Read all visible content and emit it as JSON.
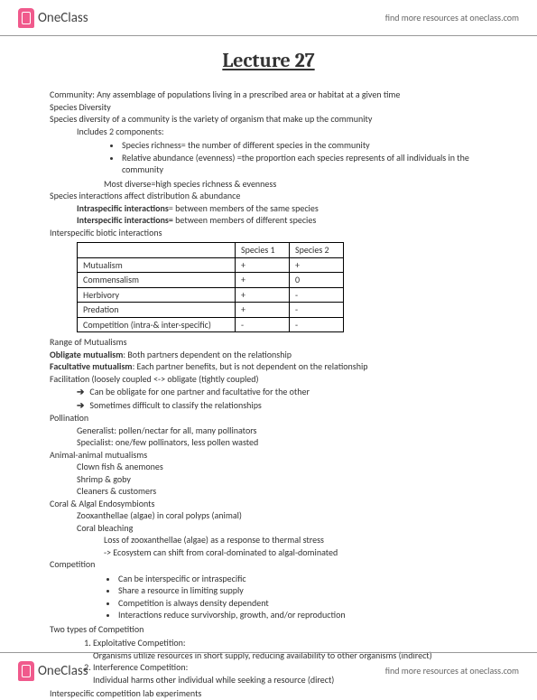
{
  "header": {
    "brand": "OneClass",
    "tagline": "find more resources at oneclass.com"
  },
  "title": "Lecture 27",
  "body": {
    "l1": "Community: Any assemblage of populations living in a prescribed area or habitat at a given time",
    "l2": "Species Diversity",
    "l3": "Species diversity of a community is the variety of organism that make up the community",
    "l4": "Includes 2 components:",
    "b1": "Species richness= the number of different species in the community",
    "b2": "Relative abundance (evenness) =the proportion each species represents of all individuals in the community",
    "l5": "Most diverse=high species richness & evenness",
    "l6": "Species interactions affect distribution & abundance",
    "l7a": "Intraspecific interactions",
    "l7b": "= between members of the same species",
    "l8a": "Interspecific interactions=",
    "l8b": " between members of different species",
    "l9": "Interspecific biotic interactions",
    "table": {
      "head": [
        "",
        "Species 1",
        "Species 2"
      ],
      "rows": [
        [
          "Mutualism",
          "+",
          "+"
        ],
        [
          "Commensalism",
          "+",
          "0"
        ],
        [
          "Herbivory",
          "+",
          "-"
        ],
        [
          "Predation",
          "+",
          "-"
        ],
        [
          "Competition (intra-& inter-specific)",
          "-",
          "-"
        ]
      ]
    },
    "l10": "Range of Mutualisms",
    "l11a": "Obligate mutualism",
    "l11b": ": Both partners dependent on the relationship",
    "l12a": "Facultative mutualism",
    "l12b": ": Each partner benefits, but is not dependent on the relationship",
    "l13": "Facilitation (loosely coupled <-> obligate (tightly coupled)",
    "ar1": "Can be obligate for one partner and facultative for the other",
    "ar2": "Sometimes difficult to classify the relationships",
    "l14": "Pollination",
    "l15": "Generalist: pollen/nectar for all, many pollinators",
    "l16": "Specialist: one/few pollinators, less pollen wasted",
    "l17": "Animal-animal mutualisms",
    "l18": "Clown fish & anemones",
    "l19": "Shrimp & goby",
    "l20": "Cleaners & customers",
    "l21": "Coral & Algal Endosymbionts",
    "l22": "Zooxanthellae (algae) in coral polyps (animal)",
    "l23": "Coral bleaching",
    "l24": "Loss of zooxanthellae (algae) as a response to thermal stress",
    "l25": "-> Ecosystem can shift from coral-dominated to algal-dominated",
    "l26": "Competition",
    "cb1": "Can be interspecific or intraspecific",
    "cb2": "Share a resource in limiting supply",
    "cb3": "Competition is always density dependent",
    "cb4": "Interactions reduce survivorship, growth, and/or reproduction",
    "l27": "Two types of Competition",
    "n1": "Exploitative Competition:",
    "n1b": "Organisms utilize resources in short supply, reducing availability to other organisms (indirect)",
    "n2": "Interference Competition:",
    "n2b": "Individual harms other individual while seeking a resource (direct)",
    "l28": "Interspecific competition lab experiments"
  },
  "footer": {
    "brand": "OneClass",
    "tagline": "find more resources at oneclass.com"
  }
}
